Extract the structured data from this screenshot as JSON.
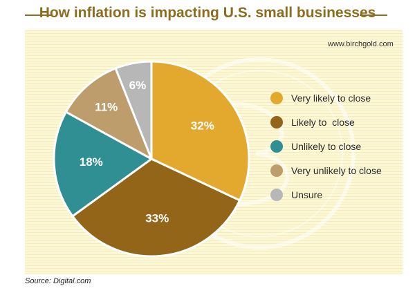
{
  "header": {
    "title": "How inflation is impacting U.S. small businesses"
  },
  "watermark": {
    "site": "www.birchgold.com"
  },
  "footer": {
    "source": "Source: Digital.com"
  },
  "colors": {
    "very_likely": "#e3a92e",
    "likely": "#926518",
    "unlikely": "#2f8f93",
    "very_unlikely": "#bd9d6c",
    "unsure": "#b7b7b7",
    "title": "#8a6d1f"
  },
  "chart_data": {
    "type": "pie",
    "title": "How inflation is impacting U.S. small businesses",
    "slices": [
      {
        "label": "Very likely to close",
        "value": 32,
        "display": "32%",
        "color": "#e3a92e"
      },
      {
        "label": "Likely to  close",
        "value": 33,
        "display": "33%",
        "color": "#926518"
      },
      {
        "label": "Unlikely to close",
        "value": 18,
        "display": "18%",
        "color": "#2f8f93"
      },
      {
        "label": "Very unlikely to close",
        "value": 11,
        "display": "11%",
        "color": "#bd9d6c"
      },
      {
        "label": "Unsure",
        "value": 6,
        "display": "6%",
        "color": "#b7b7b7"
      }
    ],
    "legend_position": "right"
  }
}
